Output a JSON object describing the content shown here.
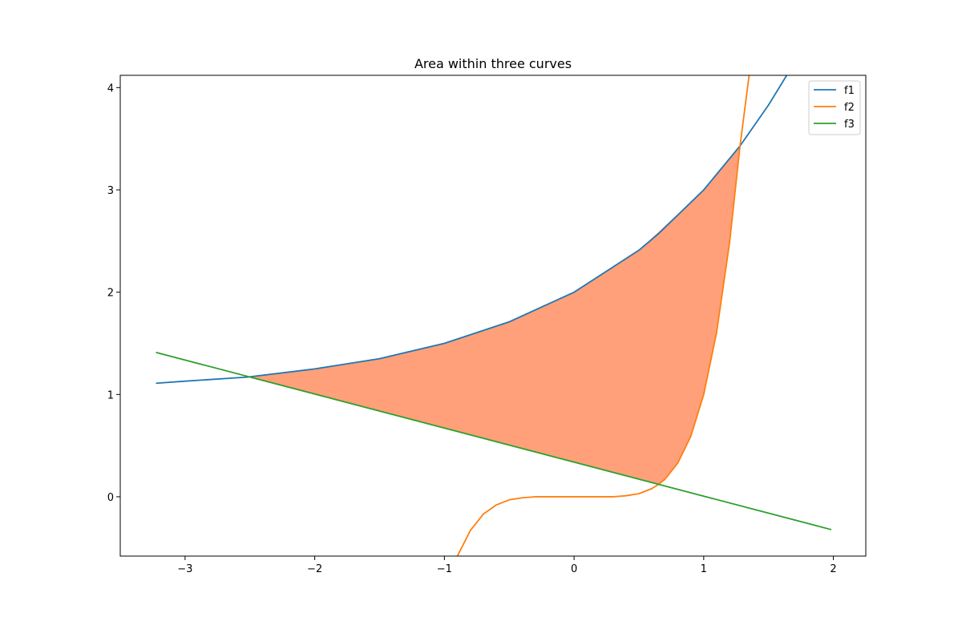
{
  "chart_data": {
    "type": "line",
    "title": "Area within three curves",
    "xlabel": "",
    "ylabel": "",
    "xlim": [
      -3.5,
      2.25
    ],
    "ylim": [
      -0.58,
      4.12
    ],
    "x_ticks": [
      -3,
      -2,
      -1,
      0,
      1,
      2
    ],
    "x_tick_labels": [
      "−3",
      "−2",
      "−1",
      "0",
      "1",
      "2"
    ],
    "y_ticks": [
      0,
      1,
      2,
      3,
      4
    ],
    "y_tick_labels": [
      "0",
      "1",
      "2",
      "3",
      "4"
    ],
    "grid": false,
    "legend_position": "upper right",
    "series": [
      {
        "name": "f1",
        "color": "#1f77b4",
        "x": [
          -3.22,
          -3.0,
          -2.52,
          -2.0,
          -1.5,
          -1.0,
          -0.5,
          0.0,
          0.5,
          0.65,
          1.0,
          1.28,
          1.5,
          1.64
        ],
        "y": [
          1.11,
          1.13,
          1.17,
          1.25,
          1.35,
          1.5,
          1.71,
          2.0,
          2.41,
          2.57,
          3.0,
          3.43,
          3.83,
          4.12
        ]
      },
      {
        "name": "f2",
        "color": "#ff7f0e",
        "x": [
          -0.9,
          -0.8,
          -0.7,
          -0.6,
          -0.5,
          -0.4,
          -0.3,
          0.0,
          0.3,
          0.4,
          0.5,
          0.6,
          0.65,
          0.7,
          0.8,
          0.9,
          1.0,
          1.1,
          1.2,
          1.28,
          1.35
        ],
        "y": [
          -0.58,
          -0.33,
          -0.17,
          -0.08,
          -0.03,
          -0.01,
          0.0,
          0.0,
          0.0,
          0.01,
          0.03,
          0.08,
          0.12,
          0.17,
          0.33,
          0.59,
          1.0,
          1.61,
          2.49,
          3.43,
          4.12
        ]
      },
      {
        "name": "f3",
        "color": "#2ca02c",
        "x": [
          -3.22,
          1.98
        ],
        "y": [
          1.41,
          -0.32
        ]
      }
    ],
    "fill": {
      "color": "#ffa07a",
      "vertices": [
        [
          -2.52,
          1.17
        ],
        [
          -2.0,
          1.25
        ],
        [
          -1.5,
          1.35
        ],
        [
          -1.0,
          1.5
        ],
        [
          -0.5,
          1.71
        ],
        [
          0.0,
          2.0
        ],
        [
          0.5,
          2.41
        ],
        [
          1.0,
          3.0
        ],
        [
          1.28,
          3.43
        ],
        [
          1.2,
          2.49
        ],
        [
          1.1,
          1.61
        ],
        [
          1.0,
          1.0
        ],
        [
          0.9,
          0.59
        ],
        [
          0.8,
          0.33
        ],
        [
          0.7,
          0.17
        ],
        [
          0.65,
          0.12
        ],
        [
          -2.52,
          1.17
        ]
      ]
    }
  }
}
